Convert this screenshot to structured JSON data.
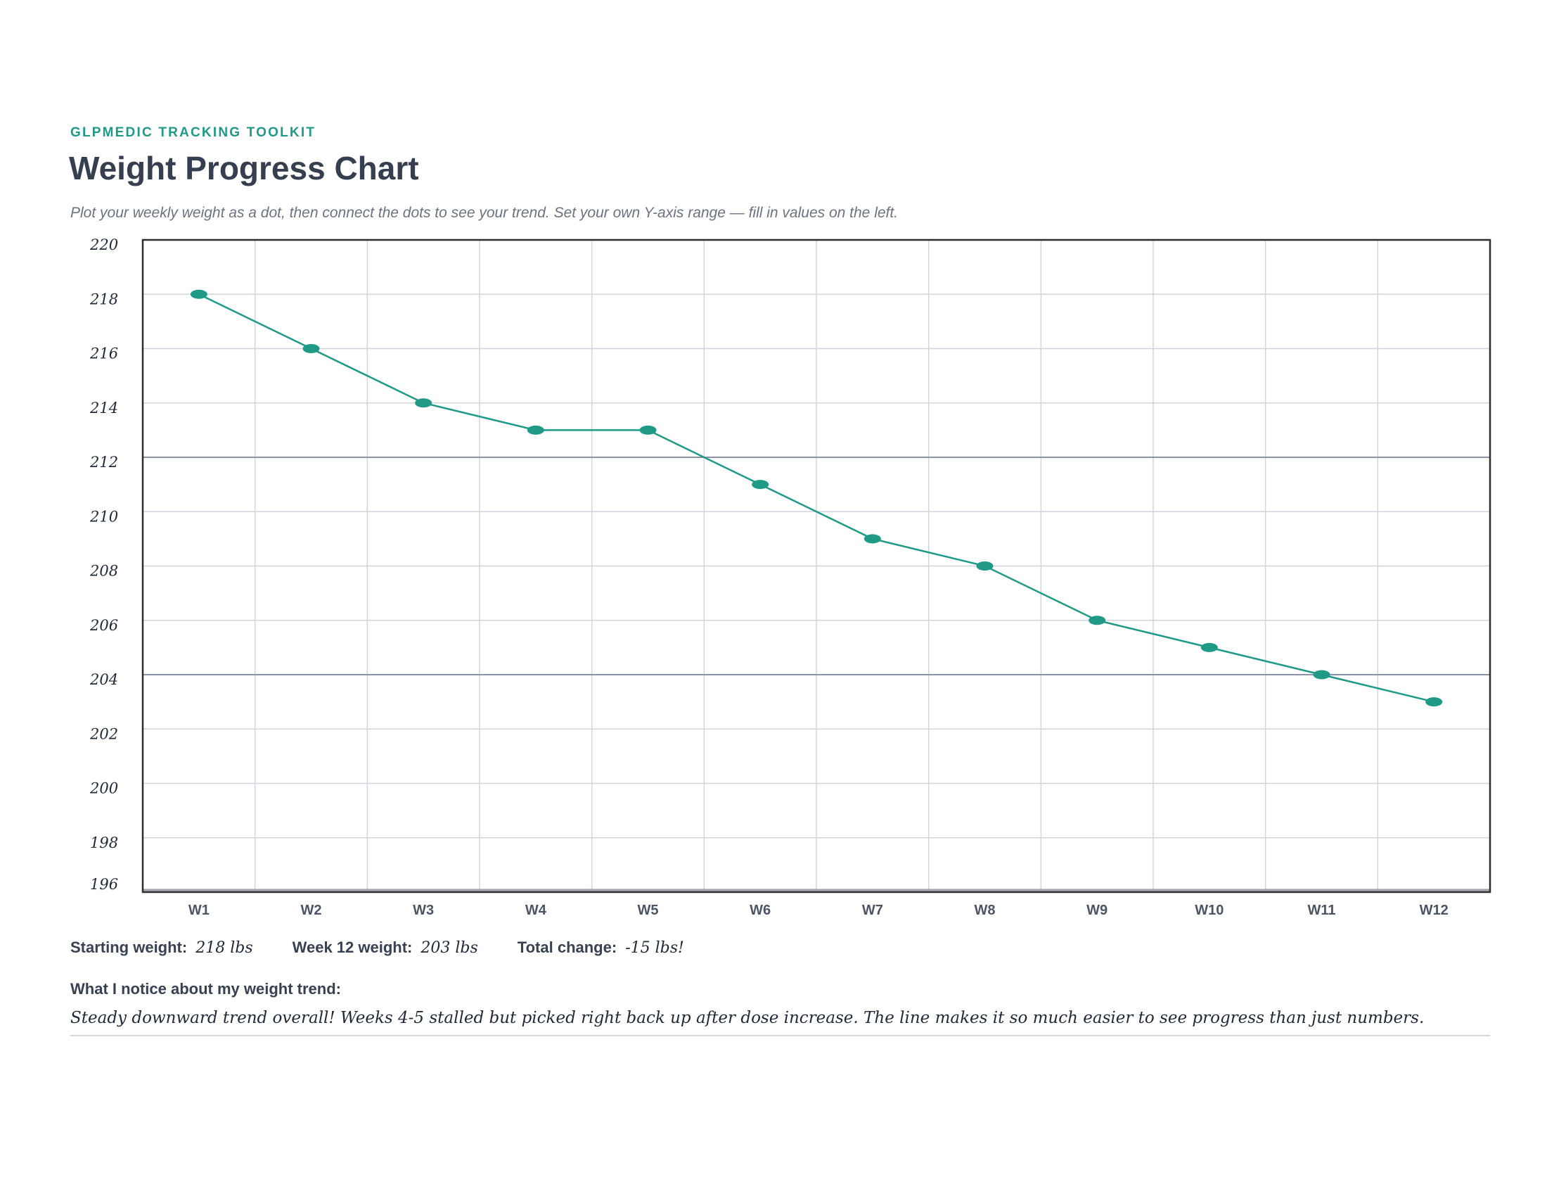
{
  "header": {
    "eyebrow": "GLPMEDIC TRACKING TOOLKIT",
    "title": "Weight Progress Chart",
    "subtitle": "Plot your weekly weight as a dot, then connect the dots to see your trend. Set your own Y-axis range — fill in values on the left."
  },
  "chart_data": {
    "type": "line",
    "categories": [
      "W1",
      "W2",
      "W3",
      "W4",
      "W5",
      "W6",
      "W7",
      "W8",
      "W9",
      "W10",
      "W11",
      "W12"
    ],
    "values": [
      218,
      216,
      214,
      213,
      213,
      211,
      209,
      208,
      206,
      205,
      204,
      203
    ],
    "yticks": [
      "220",
      "218",
      "216",
      "214",
      "212",
      "210",
      "208",
      "206",
      "204",
      "202",
      "200",
      "198",
      "196"
    ],
    "ylim": [
      196,
      220
    ],
    "grid": true,
    "line_color": "#1f9a86",
    "title": "",
    "xlabel": "",
    "ylabel": ""
  },
  "summary": {
    "start_label": "Starting weight:",
    "start_value": "218 lbs",
    "end_label": "Week 12 weight:",
    "end_value": "203 lbs",
    "change_label": "Total change:",
    "change_value": "-15 lbs!"
  },
  "notes": {
    "label": "What I notice about my weight trend:",
    "text": "Steady downward trend overall! Weeks 4-5 stalled but picked right back up after dose increase. The line makes it so much easier to see progress than just numbers."
  }
}
